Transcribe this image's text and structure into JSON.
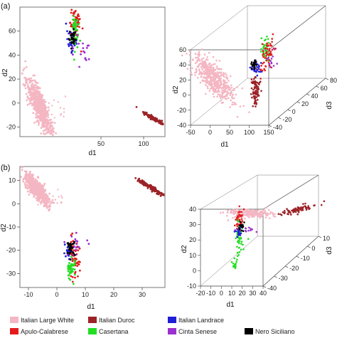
{
  "panel_labels": [
    "(a)",
    "(b)"
  ],
  "legend": [
    {
      "name": "Italian Large White",
      "color": "#f4b6c2"
    },
    {
      "name": "Italian Duroc",
      "color": "#9b2226"
    },
    {
      "name": "Italian Landrace",
      "color": "#1f1fd6"
    },
    {
      "name": "Apulo-Calabrese",
      "color": "#e41a1c"
    },
    {
      "name": "Casertana",
      "color": "#22dd22"
    },
    {
      "name": "Cinta Senese",
      "color": "#9b30d0"
    },
    {
      "name": "Nero Siciliano",
      "color": "#000000"
    }
  ],
  "chart_data": [
    {
      "type": "scatter",
      "panel": "(a)",
      "xlabel": "d1",
      "ylabel": "d2",
      "xlim": [
        -45,
        125
      ],
      "ylim": [
        -28,
        80
      ],
      "xticks": [
        50,
        100
      ],
      "yticks": [
        -20,
        0,
        20,
        40,
        60
      ],
      "clusters": [
        {
          "name": "Italian Large White",
          "center": [
            -22,
            -3
          ],
          "spread": [
            10,
            12
          ],
          "count": 700,
          "shape": "elongated"
        },
        {
          "name": "Italian Duroc",
          "center": [
            112,
            -13
          ],
          "spread": [
            6,
            3
          ],
          "count": 160,
          "shape": "diagonal"
        },
        {
          "name": "Italian Landrace",
          "center": [
            15,
            52
          ],
          "spread": [
            3,
            4
          ],
          "count": 40
        },
        {
          "name": "Apulo-Calabrese",
          "center": [
            20,
            66
          ],
          "spread": [
            3,
            9
          ],
          "count": 60
        },
        {
          "name": "Casertana",
          "center": [
            19,
            60
          ],
          "spread": [
            2,
            8
          ],
          "count": 45
        },
        {
          "name": "Cinta Senese",
          "center": [
            27,
            44
          ],
          "spread": [
            7,
            6
          ],
          "count": 18
        },
        {
          "name": "Nero Siciliano",
          "center": [
            17,
            54
          ],
          "spread": [
            2,
            4
          ],
          "count": 30
        }
      ]
    },
    {
      "type": "scatter3d",
      "panel": "(a)",
      "xlabel": "d1",
      "ylabel": "d2",
      "zlabel": "d3",
      "xticks": [
        -50,
        0,
        50,
        100,
        150
      ],
      "yticks": [
        -40,
        -20,
        0,
        20,
        40,
        60
      ],
      "zticks": [
        -40,
        -20,
        0,
        20,
        40,
        60,
        80
      ]
    },
    {
      "type": "scatter",
      "panel": "(b)",
      "xlabel": "d1",
      "ylabel": "d2",
      "xlim": [
        -13,
        38
      ],
      "ylim": [
        -36,
        16
      ],
      "xticks": [
        -10,
        0,
        10,
        20,
        30
      ],
      "yticks": [
        -30,
        -20,
        -10,
        0,
        10
      ],
      "clusters": [
        {
          "name": "Italian Large White",
          "center": [
            -7,
            6
          ],
          "spread": [
            3,
            3.5
          ],
          "count": 600,
          "shape": "elongated"
        },
        {
          "name": "Italian Duroc",
          "center": [
            33,
            7
          ],
          "spread": [
            2.2,
            2
          ],
          "count": 150,
          "shape": "diagonal"
        },
        {
          "name": "Italian Landrace",
          "center": [
            4,
            -21
          ],
          "spread": [
            0.8,
            1.2
          ],
          "count": 35
        },
        {
          "name": "Apulo-Calabrese",
          "center": [
            6,
            -24
          ],
          "spread": [
            1,
            4
          ],
          "count": 55
        },
        {
          "name": "Casertana",
          "center": [
            5,
            -28
          ],
          "spread": [
            0.8,
            2.5
          ],
          "count": 45
        },
        {
          "name": "Cinta Senese",
          "center": [
            7,
            -17
          ],
          "spread": [
            2,
            2
          ],
          "count": 15
        },
        {
          "name": "Nero Siciliano",
          "center": [
            5,
            -19
          ],
          "spread": [
            0.7,
            1.5
          ],
          "count": 30
        }
      ]
    },
    {
      "type": "scatter3d",
      "panel": "(b)",
      "xlabel": "d1",
      "ylabel": "d2",
      "zlabel": "d3",
      "xticks": [
        -20,
        -10,
        0,
        10,
        20,
        30,
        40
      ],
      "yticks": [
        -10,
        0,
        10,
        20,
        30,
        40
      ],
      "zticks": [
        -40,
        -30,
        -20,
        -10,
        0,
        10
      ]
    }
  ]
}
